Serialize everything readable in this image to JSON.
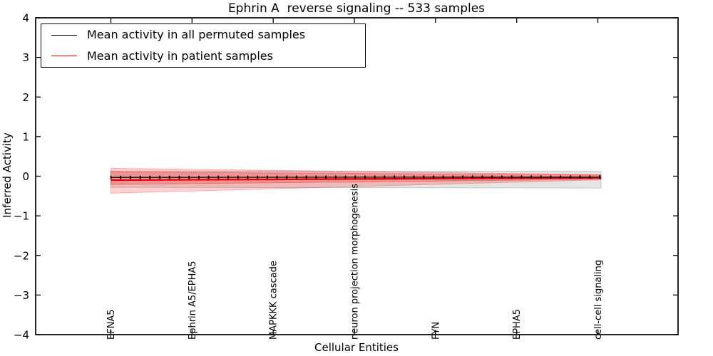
{
  "legend": {
    "entries": [
      {
        "label": "Mean activity in all permuted samples",
        "color": "#000000"
      },
      {
        "label": "Mean activity in patient samples",
        "color": "#ff0000"
      }
    ]
  },
  "chart_data": {
    "type": "line",
    "title": "Ephrin A  reverse signaling -- 533 samples",
    "xlabel": "Cellular Entities",
    "ylabel": "Inferred Activity",
    "ylim": [
      -4,
      4
    ],
    "yticks": [
      4,
      3,
      2,
      1,
      0,
      -1,
      -2,
      -3,
      -4
    ],
    "x_tick_labels": [
      "EFNA5",
      "Ephrin A5/EPHA5",
      "MAPKKK cascade",
      "neuron projection morphogenesis",
      "FYN",
      "EPHA5",
      "cell-cell signaling"
    ],
    "n_points": 51,
    "grid": false,
    "legend_position": "upper left",
    "series": [
      {
        "name": "Mean activity in all permuted samples",
        "color": "#000000",
        "start": -0.03,
        "end": -0.02,
        "marker": "tick"
      },
      {
        "name": "Mean activity in patient samples",
        "color": "#e40000",
        "start": -0.1,
        "end": -0.04,
        "marker": "none"
      }
    ],
    "bands": [
      {
        "name": "permuted-std-band",
        "color": "#000000",
        "opacity": 0.1,
        "top_start": 0.13,
        "bottom_start": -0.28,
        "top_end": 0.13,
        "bottom_end": -0.3
      },
      {
        "name": "patient-std-outer-band",
        "color": "#ff0000",
        "opacity": 0.18,
        "top_start": 0.2,
        "bottom_start": -0.43,
        "top_end": 0.04,
        "bottom_end": -0.09
      },
      {
        "name": "patient-std-inner-band",
        "color": "#ff0000",
        "opacity": 0.22,
        "top_start": 0.11,
        "bottom_start": -0.21,
        "top_end": 0.03,
        "bottom_end": -0.08
      }
    ]
  }
}
